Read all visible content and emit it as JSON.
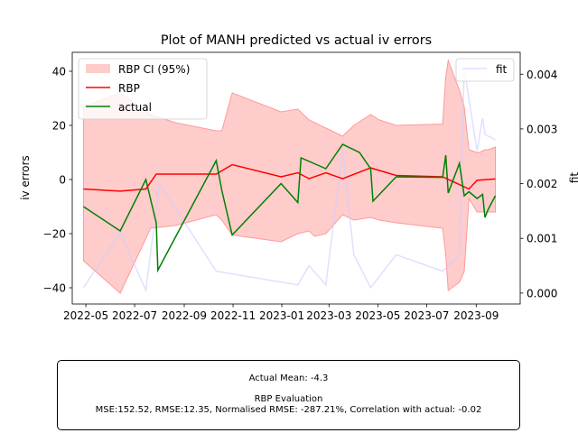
{
  "chart_data": {
    "type": "line",
    "title": "Plot of MANH predicted vs actual iv errors",
    "ylabel": "iv errors",
    "y2label": "fit",
    "xlim": [
      "2022-04-14",
      "2023-10-26"
    ],
    "ylim": [
      -46,
      47
    ],
    "y2lim": [
      -0.0002,
      0.0044
    ],
    "x_ticks": [
      "2022-05",
      "2022-07",
      "2022-09",
      "2022-11",
      "2023-01",
      "2023-03",
      "2023-05",
      "2023-07",
      "2023-09"
    ],
    "y_ticks": [
      -40,
      -20,
      0,
      20,
      40
    ],
    "y2_ticks": [
      "0.000",
      "0.001",
      "0.002",
      "0.003",
      "0.004"
    ],
    "y2_tick_values": [
      0,
      0.001,
      0.002,
      0.003,
      0.004
    ],
    "legend_left": {
      "placement": "upper-left",
      "entries": [
        "RBP CI (95%)",
        "RBP",
        "actual"
      ]
    },
    "legend_right": {
      "placement": "upper-right",
      "entries": [
        "fit"
      ]
    },
    "colors": {
      "ci": "#ff9999",
      "rbp": "#ff0000",
      "actual": "#008000",
      "fit": "#ccccff"
    },
    "ci_band": {
      "x": [
        "2022-04-28",
        "2022-06-13",
        "2022-07-21",
        "2022-08-21",
        "2022-10-11",
        "2022-10-18",
        "2022-10-31",
        "2022-12-31",
        "2023-01-21",
        "2023-02-04",
        "2023-02-11",
        "2023-02-25",
        "2023-03-18",
        "2023-04-01",
        "2023-04-22",
        "2023-05-03",
        "2023-05-24",
        "2023-07-21",
        "2023-07-25",
        "2023-07-28",
        "2023-08-11",
        "2023-08-17",
        "2023-08-23",
        "2023-09-02",
        "2023-09-05",
        "2023-09-12",
        "2023-09-16",
        "2023-09-25"
      ],
      "upper": [
        27,
        32,
        24,
        21,
        18,
        18,
        32,
        25,
        26,
        22,
        21,
        19,
        16,
        20,
        24,
        22,
        20,
        20.5,
        38,
        44,
        33,
        27,
        11,
        10,
        10,
        11,
        11,
        12
      ],
      "lower": [
        -30,
        -42,
        -18,
        -17,
        -13,
        -15,
        -20.5,
        -23,
        -20,
        -19,
        -21,
        -20,
        -13,
        -15,
        -14,
        -15,
        -16,
        -18,
        -28,
        -41,
        -38,
        -34,
        -7,
        -12,
        -12,
        -12,
        -12,
        -12
      ]
    },
    "series": [
      {
        "name": "RBP",
        "x": [
          "2022-04-28",
          "2022-06-13",
          "2022-07-15",
          "2022-07-28",
          "2022-10-11",
          "2022-10-31",
          "2022-12-31",
          "2023-01-21",
          "2023-02-04",
          "2023-02-25",
          "2023-03-18",
          "2023-04-22",
          "2023-05-24",
          "2023-07-21",
          "2023-08-23",
          "2023-09-02",
          "2023-09-25"
        ],
        "y": [
          -3.5,
          -4.3,
          -3.5,
          2,
          2,
          5.5,
          1,
          2.5,
          0.3,
          2.5,
          0.3,
          4.3,
          1.5,
          1,
          -3.5,
          -0.3,
          0.2
        ]
      },
      {
        "name": "actual",
        "x": [
          "2022-04-28",
          "2022-06-13",
          "2022-07-15",
          "2022-07-28",
          "2022-07-30",
          "2022-10-11",
          "2022-10-18",
          "2022-10-31",
          "2022-12-31",
          "2023-01-21",
          "2023-01-25",
          "2023-02-25",
          "2023-03-18",
          "2023-04-08",
          "2023-04-22",
          "2023-04-25",
          "2023-05-24",
          "2023-07-21",
          "2023-07-25",
          "2023-07-28",
          "2023-08-11",
          "2023-08-17",
          "2023-08-23",
          "2023-09-02",
          "2023-09-09",
          "2023-09-12",
          "2023-09-16",
          "2023-09-25"
        ],
        "y": [
          -10,
          -19,
          0,
          -16,
          -33.5,
          7,
          -4,
          -20.5,
          -1.5,
          -8.5,
          8,
          4,
          13,
          10,
          4,
          -8,
          1,
          0.8,
          9,
          -5,
          6,
          -6,
          -4.5,
          -7,
          -5.5,
          -14,
          -11,
          -6
        ]
      },
      {
        "name": "fit",
        "axis": "right",
        "x": [
          "2022-04-28",
          "2022-06-13",
          "2022-07-15",
          "2022-08-01",
          "2022-10-11",
          "2022-10-31",
          "2022-12-31",
          "2023-01-21",
          "2023-02-04",
          "2023-02-25",
          "2023-03-18",
          "2023-04-01",
          "2023-04-22",
          "2023-05-24",
          "2023-07-21",
          "2023-08-11",
          "2023-08-17",
          "2023-09-02",
          "2023-09-09",
          "2023-09-12",
          "2023-09-25"
        ],
        "y": [
          0.0001,
          0.0011,
          5e-05,
          0.002,
          0.0004,
          0.00035,
          0.0002,
          0.00015,
          0.0005,
          0.00015,
          0.0026,
          0.0007,
          0.0001,
          0.0007,
          0.0004,
          0.0007,
          0.0041,
          0.0026,
          0.0032,
          0.0029,
          0.0028
        ]
      }
    ]
  },
  "stats": {
    "actual_mean": "Actual Mean: -4.3",
    "eval_title": "RBP Evaluation",
    "metrics": "MSE:152.52, RMSE:12.35, Normalised RMSE: -287.21%, Correlation with actual: -0.02"
  }
}
